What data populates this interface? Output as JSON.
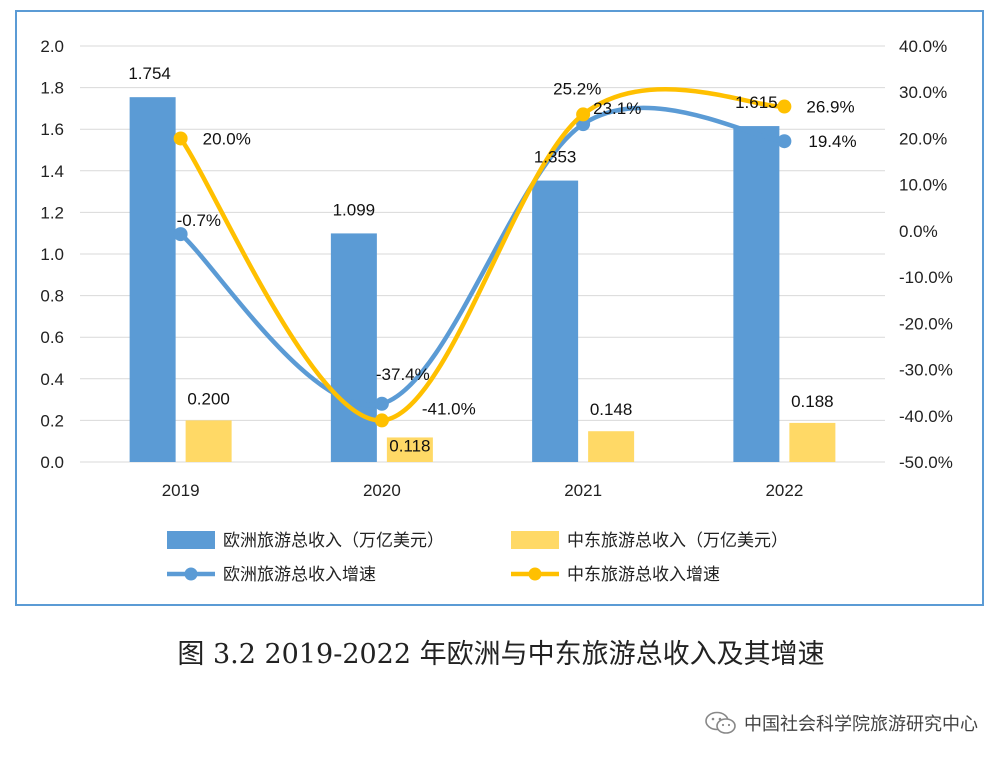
{
  "caption": "图 3.2 2019-2022 年欧洲与中东旅游总收入及其增速",
  "watermark": "中国社会科学院旅游研究中心",
  "colors": {
    "europe_bar": "#5b9bd5",
    "mideast_bar": "#ffd966",
    "europe_line": "#5b9bd5",
    "mideast_line": "#ffc000",
    "frame": "#5b9bd5",
    "grid": "#d9d9d9"
  },
  "chart_data": {
    "type": "bar",
    "categories": [
      "2019",
      "2020",
      "2021",
      "2022"
    ],
    "y_left": {
      "ylim": [
        0,
        2.0
      ],
      "ticks": [
        "0.0",
        "0.2",
        "0.4",
        "0.6",
        "0.8",
        "1.0",
        "1.2",
        "1.4",
        "1.6",
        "1.8",
        "2.0"
      ]
    },
    "y_right": {
      "ylim": [
        -50,
        40
      ],
      "ticks": [
        "-50.0%",
        "-40.0%",
        "-30.0%",
        "-20.0%",
        "-10.0%",
        "0.0%",
        "10.0%",
        "20.0%",
        "30.0%",
        "40.0%"
      ]
    },
    "grid": true,
    "legend_position": "bottom",
    "series": [
      {
        "name": "欧洲旅游总收入（万亿美元）",
        "kind": "bar",
        "axis": "left",
        "values": [
          1.754,
          1.099,
          1.353,
          1.615
        ],
        "labels": [
          "1.754",
          "1.099",
          "1.353",
          "1.615"
        ]
      },
      {
        "name": "中东旅游总收入（万亿美元）",
        "kind": "bar",
        "axis": "left",
        "values": [
          0.2,
          0.118,
          0.148,
          0.188
        ],
        "labels": [
          "0.200",
          "0.118",
          "0.148",
          "0.188"
        ]
      },
      {
        "name": "欧洲旅游总收入增速",
        "kind": "line",
        "axis": "right",
        "values": [
          -0.7,
          -37.4,
          23.1,
          19.4
        ],
        "labels": [
          "-0.7%",
          "-37.4%",
          "23.1%",
          "19.4%"
        ]
      },
      {
        "name": "中东旅游总收入增速",
        "kind": "line",
        "axis": "right",
        "values": [
          20.0,
          -41.0,
          25.2,
          26.9
        ],
        "labels": [
          "20.0%",
          "-41.0%",
          "25.2%",
          "26.9%"
        ]
      }
    ]
  }
}
